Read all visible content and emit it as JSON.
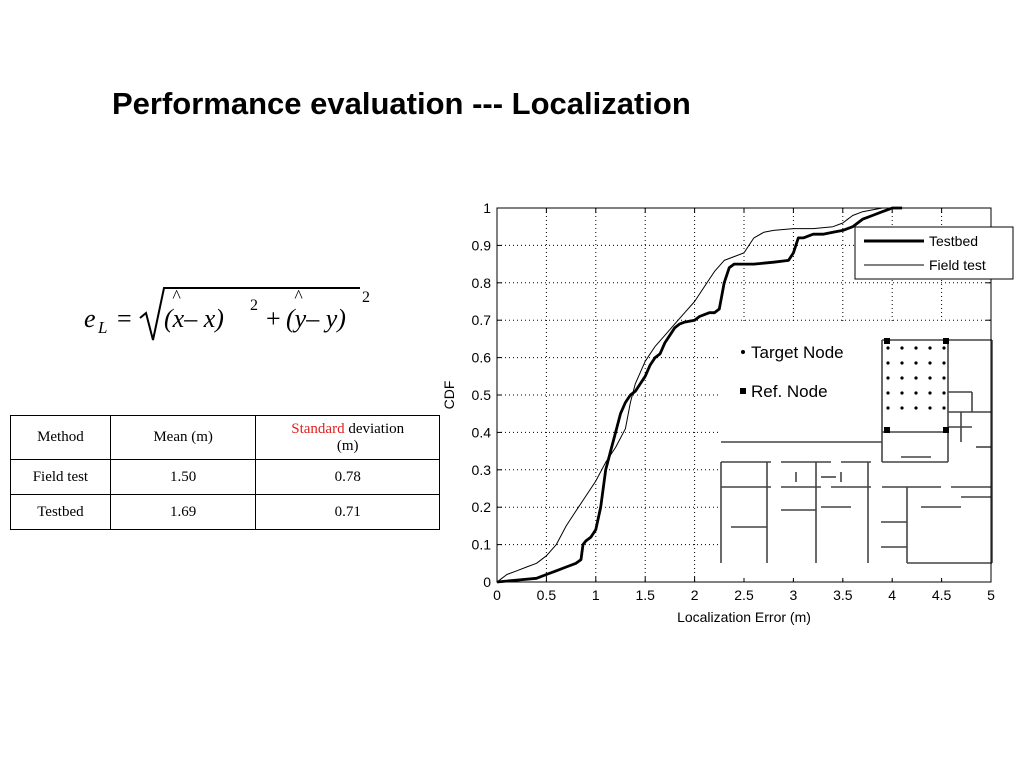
{
  "slide": {
    "title": "Performance evaluation --- Localization"
  },
  "formula": {
    "lhs": "e",
    "lhs_sub": "L",
    "equals": "=",
    "term1": "(x– x)",
    "term2": "(y– y)",
    "plus": "+",
    "exp": "2",
    "hat": "^"
  },
  "table": {
    "headers": {
      "method": "Method",
      "mean": "Mean (m)",
      "std_highlight": "Standard",
      "std_rest": " deviation",
      "std_unit": "(m)"
    },
    "rows": [
      {
        "method": "Field test",
        "mean": "1.50",
        "std": "0.78"
      },
      {
        "method": "Testbed",
        "mean": "1.69",
        "std": "0.71"
      }
    ],
    "highlight_color": "#e02020"
  },
  "chart_data": {
    "type": "line",
    "xlabel": "Localization Error (m)",
    "ylabel": "CDF",
    "xlim": [
      0,
      5
    ],
    "ylim": [
      0,
      1
    ],
    "xticks": [
      0,
      0.5,
      1,
      1.5,
      2,
      2.5,
      3,
      3.5,
      4,
      4.5,
      5
    ],
    "xtick_labels": [
      "0",
      "0.5",
      "1",
      "1.5",
      "2",
      "2.5",
      "3",
      "3.5",
      "4",
      "4.5",
      "5"
    ],
    "yticks": [
      0,
      0.1,
      0.2,
      0.3,
      0.4,
      0.5,
      0.6,
      0.7,
      0.8,
      0.9,
      1
    ],
    "ytick_labels": [
      "0",
      "0.1",
      "0.2",
      "0.3",
      "0.4",
      "0.5",
      "0.6",
      "0.7",
      "0.8",
      "0.9",
      "1"
    ],
    "grid": true,
    "legend_position": "top-right",
    "series": [
      {
        "name": "Testbed",
        "style": "thick",
        "color": "#000000",
        "x": [
          0,
          0.2,
          0.4,
          0.5,
          0.6,
          0.7,
          0.8,
          0.85,
          0.87,
          0.9,
          0.95,
          1.0,
          1.05,
          1.1,
          1.15,
          1.2,
          1.25,
          1.3,
          1.35,
          1.4,
          1.5,
          1.55,
          1.6,
          1.65,
          1.7,
          1.75,
          1.8,
          1.85,
          1.9,
          2.0,
          2.05,
          2.1,
          2.15,
          2.2,
          2.25,
          2.3,
          2.35,
          2.4,
          2.6,
          2.8,
          2.95,
          3.0,
          3.05,
          3.1,
          3.2,
          3.3,
          3.4,
          3.5,
          3.6,
          3.7,
          3.8,
          3.9,
          4.0,
          4.1
        ],
        "y": [
          0,
          0.005,
          0.01,
          0.02,
          0.03,
          0.04,
          0.05,
          0.06,
          0.1,
          0.11,
          0.12,
          0.14,
          0.2,
          0.3,
          0.35,
          0.4,
          0.45,
          0.48,
          0.5,
          0.51,
          0.55,
          0.58,
          0.6,
          0.61,
          0.64,
          0.66,
          0.68,
          0.69,
          0.695,
          0.7,
          0.71,
          0.715,
          0.72,
          0.72,
          0.73,
          0.8,
          0.84,
          0.85,
          0.85,
          0.855,
          0.86,
          0.88,
          0.92,
          0.92,
          0.93,
          0.93,
          0.935,
          0.94,
          0.95,
          0.97,
          0.98,
          0.99,
          1.0,
          1.0
        ]
      },
      {
        "name": "Field test",
        "style": "thin",
        "color": "#000000",
        "x": [
          0,
          0.05,
          0.1,
          0.2,
          0.3,
          0.4,
          0.5,
          0.6,
          0.7,
          0.8,
          0.9,
          1.0,
          1.1,
          1.2,
          1.3,
          1.35,
          1.4,
          1.5,
          1.6,
          1.7,
          1.8,
          1.9,
          2.0,
          2.1,
          2.2,
          2.3,
          2.4,
          2.5,
          2.55,
          2.6,
          2.7,
          2.8,
          3.0,
          3.2,
          3.4,
          3.5,
          3.55,
          3.6,
          3.7,
          3.8,
          3.9,
          4.0
        ],
        "y": [
          0,
          0.01,
          0.02,
          0.03,
          0.04,
          0.05,
          0.07,
          0.1,
          0.15,
          0.19,
          0.23,
          0.27,
          0.32,
          0.36,
          0.41,
          0.48,
          0.53,
          0.59,
          0.63,
          0.66,
          0.69,
          0.72,
          0.75,
          0.79,
          0.83,
          0.86,
          0.87,
          0.88,
          0.9,
          0.92,
          0.935,
          0.94,
          0.945,
          0.945,
          0.95,
          0.96,
          0.97,
          0.98,
          0.99,
          0.995,
          1.0,
          1.0
        ]
      }
    ],
    "inset": {
      "target_label": "Target Node",
      "ref_label": "Ref. Node"
    }
  }
}
